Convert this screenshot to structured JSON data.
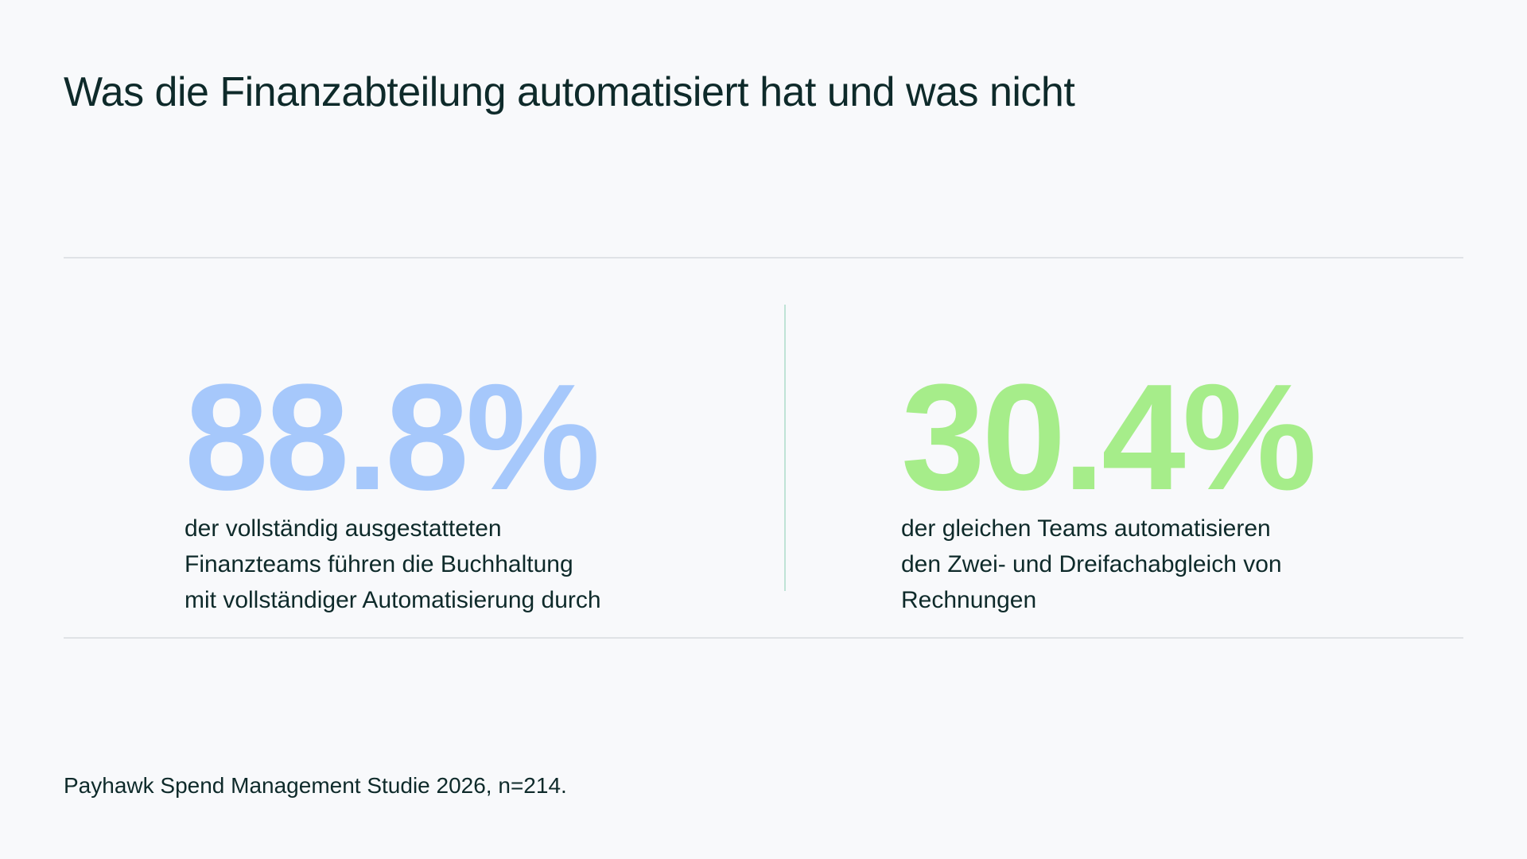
{
  "title": "Was die Finanzabteilung automatisiert hat und was nicht",
  "stats": [
    {
      "value": "88.8%",
      "description_lines": [
        "der vollständig ausgestatteten",
        "Finanzteams führen die Buchhaltung",
        "mit vollständiger Automatisierung durch"
      ]
    },
    {
      "value": "30.4%",
      "description_lines": [
        "der gleichen Teams automatisieren",
        "den Zwei- und Dreifachabgleich von",
        "Rechnungen"
      ]
    }
  ],
  "source": "Payhawk Spend Management Studie 2026, n=214.",
  "colors": {
    "background": "#f8f9fb",
    "text": "#0e2a2a",
    "stat_left": "#a6c8fb",
    "stat_right": "#a6ed8a",
    "divider": "#bfe3d6",
    "rule": "#e0e3e6"
  }
}
